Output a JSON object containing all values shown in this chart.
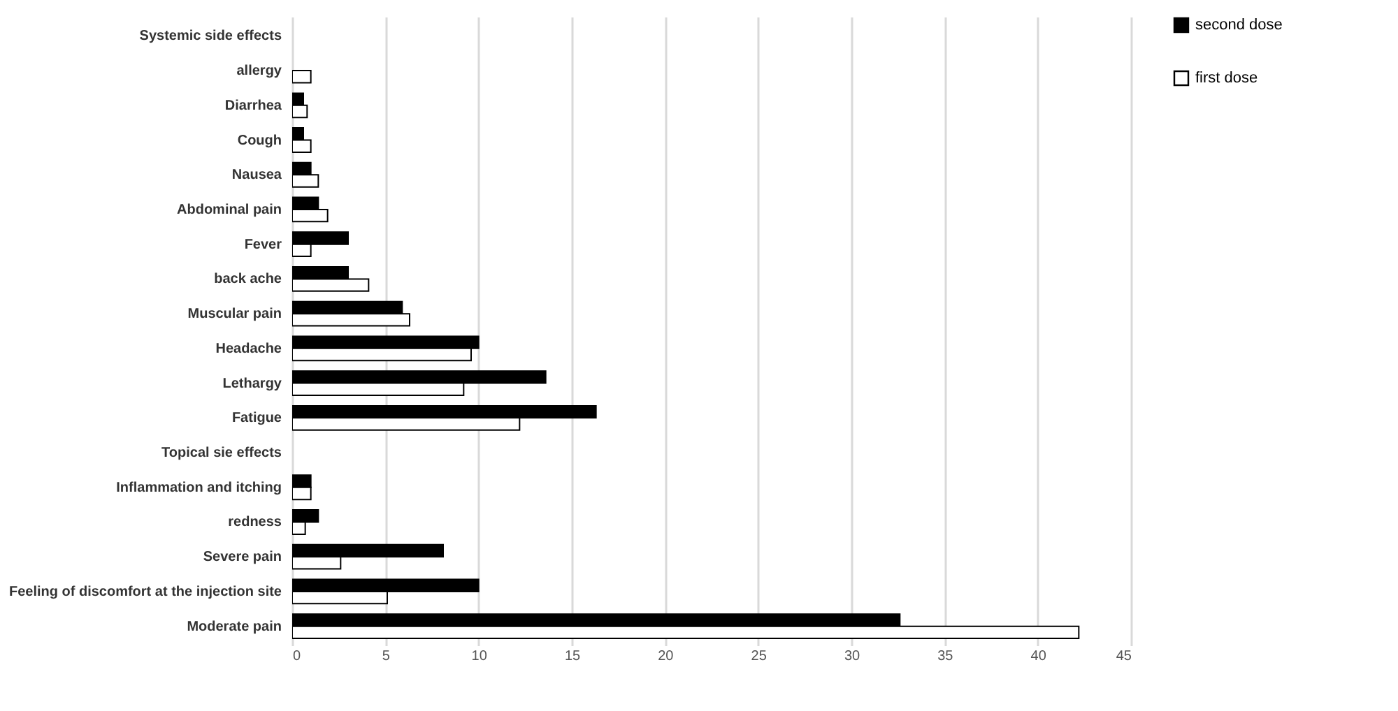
{
  "chart_data": {
    "type": "bar",
    "orientation": "horizontal",
    "categories": [
      "Systemic side effects",
      "allergy",
      "Diarrhea",
      "Cough",
      "Nausea",
      "Abdominal pain",
      "Fever",
      "back ache",
      "Muscular pain",
      "Headache",
      "Lethargy",
      "Fatigue",
      "Topical sie effects",
      "Inflammation and itching",
      "redness",
      "Severe pain",
      "Feeling of discomfort at the injection site",
      "Moderate pain"
    ],
    "series": [
      {
        "name": "second dose",
        "color": "#000000",
        "values": [
          null,
          null,
          0.6,
          0.6,
          1.0,
          1.4,
          3.0,
          3.0,
          5.9,
          10.0,
          13.6,
          16.3,
          null,
          1.0,
          1.4,
          8.1,
          10.0,
          32.6
        ]
      },
      {
        "name": "first dose",
        "color": "#ffffff",
        "values": [
          null,
          1.0,
          0.8,
          1.0,
          1.4,
          1.9,
          1.0,
          4.1,
          6.3,
          9.6,
          9.2,
          12.2,
          null,
          1.0,
          0.7,
          2.6,
          5.1,
          42.2
        ]
      }
    ],
    "xlim": [
      0,
      45
    ],
    "xticks": [
      0,
      5,
      10,
      15,
      20,
      25,
      30,
      35,
      40,
      45
    ],
    "grid": "x",
    "legend": "top right"
  }
}
